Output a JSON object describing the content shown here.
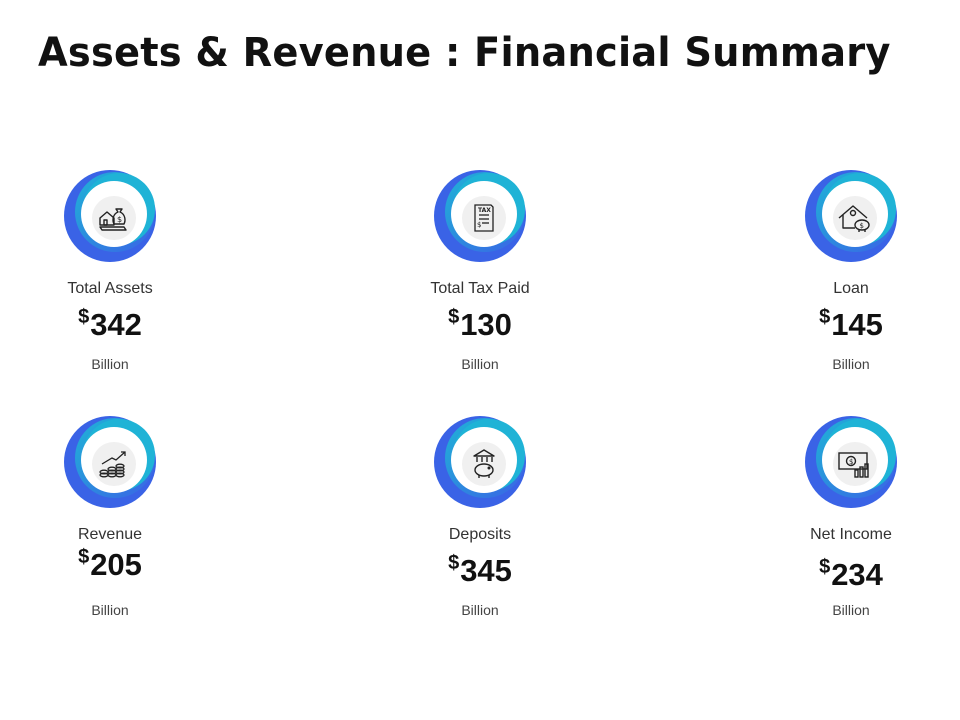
{
  "title": "Assets & Revenue : Financial Summary",
  "colors": {
    "ring_dark": "#3a63e6",
    "ring_light": "#1fb3d6",
    "icon_bg": "#f0f0f0",
    "icon_stroke": "#222222"
  },
  "metrics": [
    {
      "label": "Total Assets",
      "currency": "$",
      "value": "342",
      "unit": "Billion",
      "icon": "house-money-bag-icon"
    },
    {
      "label": "Total Tax Paid",
      "currency": "$",
      "value": "130",
      "unit": "Billion",
      "icon": "tax-document-icon"
    },
    {
      "label": "Loan",
      "currency": "$",
      "value": "145",
      "unit": "Billion",
      "icon": "house-piggy-bank-icon"
    },
    {
      "label": "Revenue",
      "currency": "$",
      "value": "205",
      "unit": "Billion",
      "icon": "coins-growth-icon"
    },
    {
      "label": "Deposits",
      "currency": "$",
      "value": "345",
      "unit": "Billion",
      "icon": "bank-piggy-icon"
    },
    {
      "label": "Net Income",
      "currency": "$",
      "value": "234",
      "unit": "Billion",
      "icon": "cash-chart-icon"
    }
  ]
}
